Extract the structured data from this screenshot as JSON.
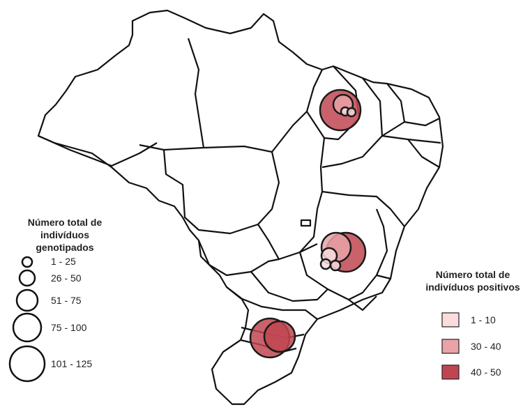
{
  "size_legend": {
    "title_line1": "Número total de",
    "title_line2": "indivíduos genotipados",
    "items": [
      {
        "label": "1 - 25"
      },
      {
        "label": "26 - 50"
      },
      {
        "label": "51 - 75"
      },
      {
        "label": "75 - 100"
      },
      {
        "label": "101 - 125"
      }
    ]
  },
  "color_legend": {
    "title_line1": "Número total de",
    "title_line2": "indivíduos positivos",
    "items": [
      {
        "label": "1 - 10",
        "color": "#f9dcdc"
      },
      {
        "label": "30 - 40",
        "color": "#e9a3a8"
      },
      {
        "label": "40 - 50",
        "color": "#bf4650"
      }
    ]
  },
  "colors": {
    "state_stroke": "#111111",
    "state_fill": "#ffffff",
    "circle_stroke": "#1a1a1a"
  },
  "map_markers": [
    {
      "group": "north-east (Maranhão/Piauí)",
      "genotyped_class": "101 - 125",
      "positive_class": "40 - 50"
    },
    {
      "group": "north-east (Maranhão/Piauí)",
      "genotyped_class": "26 - 50",
      "positive_class": "30 - 40"
    },
    {
      "group": "north-east (Maranhão/Piauí)",
      "genotyped_class": "1 - 25",
      "positive_class": "1 - 10"
    },
    {
      "group": "north-east (Maranhão/Piauí)",
      "genotyped_class": "1 - 25",
      "positive_class": "1 - 10"
    },
    {
      "group": "south-east (Minas Gerais)",
      "genotyped_class": "101 - 125",
      "positive_class": "40 - 50"
    },
    {
      "group": "south-east (Minas Gerais)",
      "genotyped_class": "51 - 75",
      "positive_class": "30 - 40"
    },
    {
      "group": "south-east (Minas Gerais)",
      "genotyped_class": "26 - 50",
      "positive_class": "1 - 10"
    },
    {
      "group": "south-east (Minas Gerais)",
      "genotyped_class": "1 - 25",
      "positive_class": "1 - 10"
    },
    {
      "group": "south-east (Minas Gerais)",
      "genotyped_class": "1 - 25",
      "positive_class": "1 - 10"
    },
    {
      "group": "south (Paraná/Santa Catarina)",
      "genotyped_class": "101 - 125",
      "positive_class": "40 - 50"
    },
    {
      "group": "south (Paraná/Santa Catarina)",
      "genotyped_class": "101 - 125",
      "positive_class": "40 - 50"
    }
  ]
}
